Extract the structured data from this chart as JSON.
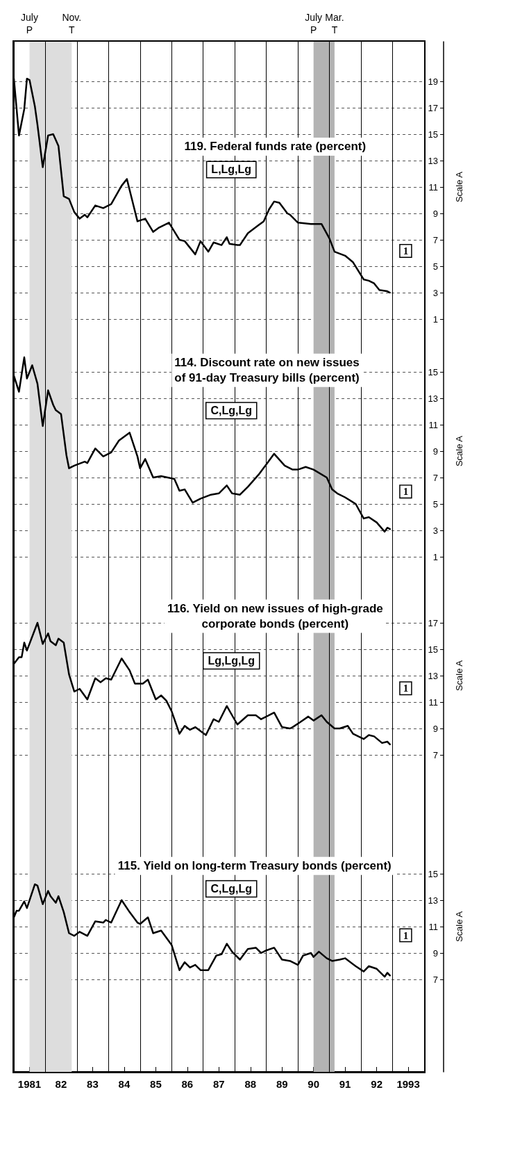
{
  "chart_data": [
    {
      "type": "line",
      "title": "119. Federal funds rate (percent)",
      "ylabel": "Scale A",
      "color": "#000000",
      "marker": "none",
      "line_style": "solid",
      "grid": true,
      "tick_labels": "y",
      "xlim": [
        "1981-01",
        "1994-01"
      ],
      "xticks": [
        {
          "value": "1981-01",
          "label": null
        },
        {
          "value": "1982-01",
          "label": null
        },
        {
          "value": "1983-01",
          "label": null
        },
        {
          "value": "1984-01",
          "label": null
        },
        {
          "value": "1985-01",
          "label": null
        },
        {
          "value": "1986-01",
          "label": null
        },
        {
          "value": "1987-01",
          "label": null
        },
        {
          "value": "1988-01",
          "label": null
        },
        {
          "value": "1989-01",
          "label": null
        },
        {
          "value": "1990-01",
          "label": null
        },
        {
          "value": "1991-01",
          "label": null
        },
        {
          "value": "1992-01",
          "label": null
        },
        {
          "value": "1993-01",
          "label": null
        },
        {
          "value": "1994-01",
          "label": null
        }
      ],
      "ylim": [
        0,
        22
      ],
      "yticks": [
        1,
        3,
        5,
        7,
        9,
        11,
        13,
        15,
        17,
        19
      ],
      "bands": [
        {
          "axis": "x",
          "from": "1981-07",
          "to": "1982-11",
          "color": "#dddddd"
        },
        {
          "axis": "x",
          "from": "1990-07",
          "to": "1991-03",
          "color": "#b3b3b3"
        }
      ],
      "annotations": [
        "July\nP",
        "Nov.\nT",
        "July\nP",
        "Mar.\nT",
        "L,Lg,Lg",
        "1"
      ],
      "x": [
        "1981-01",
        "1981-03",
        "1981-05",
        "1981-06",
        "1981-07",
        "1981-09",
        "1981-10",
        "1981-12",
        "1982-02",
        "1982-04",
        "1982-06",
        "1982-08",
        "1982-10",
        "1982-12",
        "1983-02",
        "1983-04",
        "1983-05",
        "1983-08",
        "1983-11",
        "1984-02",
        "1984-06",
        "1984-08",
        "1984-10",
        "1984-12",
        "1985-03",
        "1985-06",
        "1985-08",
        "1985-12",
        "1986-04",
        "1986-06",
        "1986-10",
        "1986-12",
        "1987-03",
        "1987-05",
        "1987-08",
        "1987-10",
        "1987-11",
        "1988-02",
        "1988-03",
        "1988-06",
        "1988-10",
        "1988-12",
        "1989-02",
        "1989-04",
        "1989-06",
        "1989-09",
        "1989-10",
        "1990-01",
        "1990-06",
        "1990-10",
        "1991-01",
        "1991-03",
        "1991-07",
        "1991-10",
        "1992-02",
        "1992-04",
        "1992-06",
        "1992-08",
        "1992-11",
        "1992-12"
      ],
      "values": [
        19.2,
        14.9,
        16.9,
        19.2,
        19.1,
        17.1,
        15.7,
        12.5,
        14.9,
        15.0,
        14.1,
        10.3,
        10.1,
        9.1,
        8.6,
        8.9,
        8.7,
        9.6,
        9.4,
        9.7,
        11.1,
        11.6,
        10.0,
        8.4,
        8.6,
        7.6,
        7.9,
        8.3,
        7.0,
        6.9,
        5.9,
        6.9,
        6.1,
        6.8,
        6.6,
        7.2,
        6.7,
        6.6,
        6.6,
        7.5,
        8.1,
        8.4,
        9.3,
        9.9,
        9.8,
        9.0,
        8.9,
        8.3,
        8.2,
        8.2,
        7.1,
        6.1,
        5.8,
        5.3,
        4.0,
        3.9,
        3.7,
        3.2,
        3.1,
        3.0
      ]
    },
    {
      "type": "line",
      "title": "114. Discount rate on new issues\nof 91-day Treasury bills (percent)",
      "ylabel": "Scale A",
      "color": "#000000",
      "marker": "none",
      "line_style": "solid",
      "grid": true,
      "tick_labels": "y",
      "xlim": [
        "1981-01",
        "1994-01"
      ],
      "xticks": [
        {
          "value": "1981-01",
          "label": null
        },
        {
          "value": "1982-01",
          "label": null
        },
        {
          "value": "1983-01",
          "label": null
        },
        {
          "value": "1984-01",
          "label": null
        },
        {
          "value": "1985-01",
          "label": null
        },
        {
          "value": "1986-01",
          "label": null
        },
        {
          "value": "1987-01",
          "label": null
        },
        {
          "value": "1988-01",
          "label": null
        },
        {
          "value": "1989-01",
          "label": null
        },
        {
          "value": "1990-01",
          "label": null
        },
        {
          "value": "1991-01",
          "label": null
        },
        {
          "value": "1992-01",
          "label": null
        },
        {
          "value": "1993-01",
          "label": null
        },
        {
          "value": "1994-01",
          "label": null
        }
      ],
      "ylim": [
        0,
        18
      ],
      "yticks": [
        1,
        3,
        5,
        7,
        9,
        11,
        13,
        15
      ],
      "bands": [
        {
          "axis": "x",
          "from": "1981-07",
          "to": "1982-11",
          "color": "#dddddd"
        },
        {
          "axis": "x",
          "from": "1990-07",
          "to": "1991-03",
          "color": "#b3b3b3"
        }
      ],
      "annotations": [
        "C,Lg,Lg",
        "1"
      ],
      "x": [
        "1981-01",
        "1981-03",
        "1981-05",
        "1981-06",
        "1981-08",
        "1981-10",
        "1981-12",
        "1982-02",
        "1982-04",
        "1982-05",
        "1982-07",
        "1982-09",
        "1982-10",
        "1982-12",
        "1983-04",
        "1983-05",
        "1983-08",
        "1983-11",
        "1984-02",
        "1984-05",
        "1984-09",
        "1984-12",
        "1985-01",
        "1985-03",
        "1985-06",
        "1985-09",
        "1986-02",
        "1986-04",
        "1986-06",
        "1986-09",
        "1986-12",
        "1987-04",
        "1987-07",
        "1987-10",
        "1987-12",
        "1988-03",
        "1988-06",
        "1988-10",
        "1989-01",
        "1989-04",
        "1989-08",
        "1989-11",
        "1990-01",
        "1990-04",
        "1990-07",
        "1990-12",
        "1991-02",
        "1991-04",
        "1991-07",
        "1991-11",
        "1992-02",
        "1992-04",
        "1992-07",
        "1992-10",
        "1992-11",
        "1992-12"
      ],
      "values": [
        14.7,
        13.5,
        16.1,
        14.5,
        15.5,
        14.1,
        10.9,
        13.6,
        12.5,
        12.1,
        11.8,
        8.7,
        7.7,
        7.9,
        8.2,
        8.1,
        9.2,
        8.6,
        8.9,
        9.8,
        10.4,
        8.6,
        7.7,
        8.4,
        7.0,
        7.1,
        6.9,
        6.0,
        6.1,
        5.1,
        5.4,
        5.7,
        5.8,
        6.4,
        5.8,
        5.7,
        6.3,
        7.2,
        8.0,
        8.8,
        7.9,
        7.6,
        7.6,
        7.8,
        7.6,
        7.0,
        6.1,
        5.8,
        5.5,
        5.0,
        3.9,
        4.0,
        3.6,
        2.9,
        3.2,
        3.1
      ]
    },
    {
      "type": "line",
      "title": "116. Yield on new issues of high-grade\ncorporate bonds (percent)",
      "ylabel": "Scale A",
      "color": "#000000",
      "marker": "none",
      "line_style": "solid",
      "grid": true,
      "tick_labels": "y",
      "xlim": [
        "1981-01",
        "1994-01"
      ],
      "xticks": [
        {
          "value": "1981-01",
          "label": null
        },
        {
          "value": "1982-01",
          "label": null
        },
        {
          "value": "1983-01",
          "label": null
        },
        {
          "value": "1984-01",
          "label": null
        },
        {
          "value": "1985-01",
          "label": null
        },
        {
          "value": "1986-01",
          "label": null
        },
        {
          "value": "1987-01",
          "label": null
        },
        {
          "value": "1988-01",
          "label": null
        },
        {
          "value": "1989-01",
          "label": null
        },
        {
          "value": "1990-01",
          "label": null
        },
        {
          "value": "1991-01",
          "label": null
        },
        {
          "value": "1992-01",
          "label": null
        },
        {
          "value": "1993-01",
          "label": null
        },
        {
          "value": "1994-01",
          "label": null
        }
      ],
      "ylim": [
        5,
        21
      ],
      "yticks": [
        7,
        9,
        11,
        13,
        15,
        17
      ],
      "bands": [
        {
          "axis": "x",
          "from": "1981-07",
          "to": "1982-11",
          "color": "#dddddd"
        },
        {
          "axis": "x",
          "from": "1990-07",
          "to": "1991-03",
          "color": "#b3b3b3"
        }
      ],
      "annotations": [
        "Lg,Lg,Lg",
        "1"
      ],
      "x": [
        "1981-01",
        "1981-03",
        "1981-04",
        "1981-05",
        "1981-06",
        "1981-10",
        "1981-12",
        "1982-02",
        "1982-03",
        "1982-05",
        "1982-06",
        "1982-08",
        "1982-10",
        "1982-12",
        "1983-02",
        "1983-05",
        "1983-08",
        "1983-10",
        "1983-12",
        "1984-02",
        "1984-06",
        "1984-09",
        "1984-11",
        "1985-02",
        "1985-04",
        "1985-07",
        "1985-09",
        "1985-11",
        "1986-01",
        "1986-04",
        "1986-06",
        "1986-08",
        "1986-10",
        "1986-12",
        "1987-02",
        "1987-05",
        "1987-07",
        "1987-10",
        "1987-12",
        "1988-02",
        "1988-06",
        "1988-09",
        "1988-11",
        "1989-01",
        "1989-04",
        "1989-07",
        "1989-10",
        "1989-11",
        "1990-02",
        "1990-05",
        "1990-07",
        "1990-10",
        "1990-12",
        "1991-03",
        "1991-05",
        "1991-08",
        "1991-10",
        "1992-02",
        "1992-04",
        "1992-06",
        "1992-09",
        "1992-11",
        "1992-12"
      ],
      "values": [
        13.9,
        14.4,
        14.4,
        15.5,
        14.9,
        17.0,
        15.4,
        16.2,
        15.6,
        15.3,
        15.8,
        15.5,
        13.1,
        11.8,
        12.0,
        11.2,
        12.8,
        12.5,
        12.8,
        12.7,
        14.3,
        13.4,
        12.4,
        12.4,
        12.7,
        11.2,
        11.5,
        11.1,
        10.3,
        8.6,
        9.2,
        8.9,
        9.1,
        8.8,
        8.5,
        9.7,
        9.5,
        10.7,
        10.0,
        9.3,
        10.0,
        10.0,
        9.7,
        9.9,
        10.2,
        9.1,
        9.0,
        9.1,
        9.5,
        9.9,
        9.6,
        10.0,
        9.5,
        9.0,
        9.0,
        9.2,
        8.6,
        8.2,
        8.5,
        8.4,
        7.9,
        8.0,
        7.8
      ]
    },
    {
      "type": "line",
      "title": "115. Yield on long-term Treasury bonds (percent)",
      "ylabel": "Scale A",
      "color": "#000000",
      "marker": "none",
      "line_style": "solid",
      "grid": true,
      "xlim": [
        "1981-01",
        "1994-01"
      ],
      "xticks": [
        {
          "value": "1981-01",
          "label": null
        },
        {
          "value": "1981-07",
          "label": "1981"
        },
        {
          "value": "1982-01",
          "label": null
        },
        {
          "value": "1982-07",
          "label": "82"
        },
        {
          "value": "1983-01",
          "label": null
        },
        {
          "value": "1983-07",
          "label": "83"
        },
        {
          "value": "1984-01",
          "label": null
        },
        {
          "value": "1984-07",
          "label": "84"
        },
        {
          "value": "1985-01",
          "label": null
        },
        {
          "value": "1985-07",
          "label": "85"
        },
        {
          "value": "1986-01",
          "label": null
        },
        {
          "value": "1986-07",
          "label": "86"
        },
        {
          "value": "1987-01",
          "label": null
        },
        {
          "value": "1987-07",
          "label": "87"
        },
        {
          "value": "1988-01",
          "label": null
        },
        {
          "value": "1988-07",
          "label": "88"
        },
        {
          "value": "1989-01",
          "label": null
        },
        {
          "value": "1989-07",
          "label": "89"
        },
        {
          "value": "1990-01",
          "label": null
        },
        {
          "value": "1990-07",
          "label": "90"
        },
        {
          "value": "1991-01",
          "label": null
        },
        {
          "value": "1991-07",
          "label": "91"
        },
        {
          "value": "1992-01",
          "label": null
        },
        {
          "value": "1992-07",
          "label": "92"
        },
        {
          "value": "1993-01",
          "label": null
        },
        {
          "value": "1993-07",
          "label": "1993"
        },
        {
          "value": "1994-01",
          "label": null
        }
      ],
      "ylim": [
        0,
        22
      ],
      "yticks": [
        7,
        9,
        11,
        13,
        15
      ],
      "bands": [
        {
          "axis": "x",
          "from": "1981-07",
          "to": "1982-11",
          "color": "#dddddd"
        },
        {
          "axis": "x",
          "from": "1990-07",
          "to": "1991-03",
          "color": "#b3b3b3"
        }
      ],
      "annotations": [
        "C,Lg,Lg",
        "1"
      ],
      "x": [
        "1981-01",
        "1981-02",
        "1981-03",
        "1981-05",
        "1981-06",
        "1981-09",
        "1981-10",
        "1981-12",
        "1982-02",
        "1982-03",
        "1982-05",
        "1982-06",
        "1982-08",
        "1982-10",
        "1982-12",
        "1983-02",
        "1983-05",
        "1983-08",
        "1983-11",
        "1983-12",
        "1984-02",
        "1984-06",
        "1984-09",
        "1984-12",
        "1985-01",
        "1985-04",
        "1985-06",
        "1985-09",
        "1986-01",
        "1986-04",
        "1986-06",
        "1986-08",
        "1986-10",
        "1986-12",
        "1987-03",
        "1987-06",
        "1987-08",
        "1987-10",
        "1987-12",
        "1988-03",
        "1988-06",
        "1988-09",
        "1988-11",
        "1989-01",
        "1989-04",
        "1989-07",
        "1989-10",
        "1990-01",
        "1990-03",
        "1990-06",
        "1990-07",
        "1990-09",
        "1990-12",
        "1991-02",
        "1991-05",
        "1991-07",
        "1991-11",
        "1992-02",
        "1992-04",
        "1992-07",
        "1992-10",
        "1992-11",
        "1992-12"
      ],
      "values": [
        11.7,
        12.2,
        12.2,
        12.9,
        12.4,
        14.2,
        14.1,
        12.7,
        13.7,
        13.3,
        12.8,
        13.3,
        12.1,
        10.5,
        10.3,
        10.6,
        10.3,
        11.4,
        11.3,
        11.5,
        11.3,
        13.0,
        12.1,
        11.3,
        11.2,
        11.7,
        10.5,
        10.7,
        9.6,
        7.7,
        8.3,
        7.9,
        8.1,
        7.7,
        7.7,
        8.8,
        8.9,
        9.7,
        9.1,
        8.5,
        9.3,
        9.4,
        9.0,
        9.2,
        9.4,
        8.5,
        8.4,
        8.1,
        8.8,
        9.0,
        8.7,
        9.1,
        8.6,
        8.4,
        8.5,
        8.6,
        8.0,
        7.6,
        8.0,
        7.8,
        7.2,
        7.5,
        7.3
      ]
    }
  ]
}
